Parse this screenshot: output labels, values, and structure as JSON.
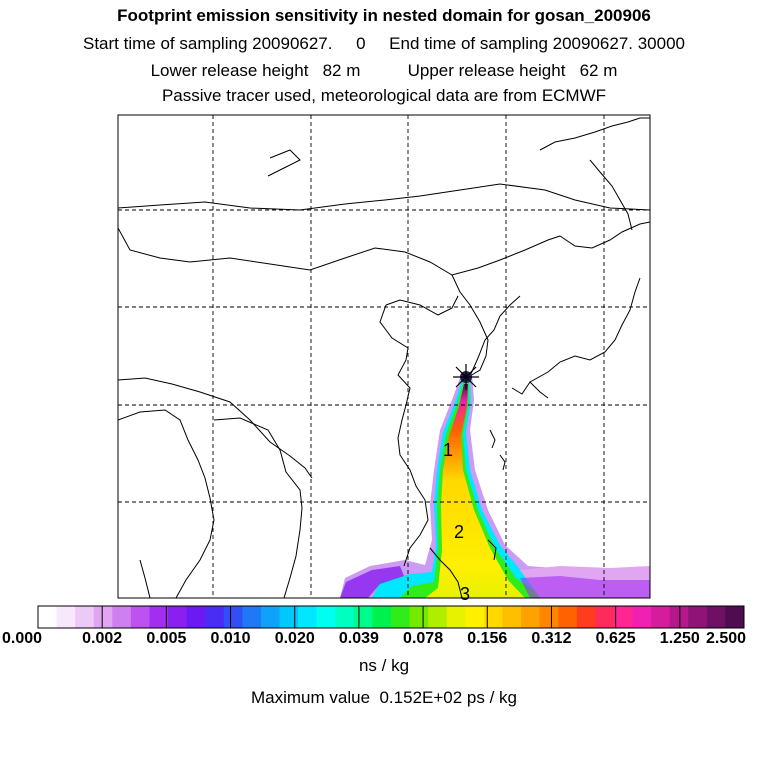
{
  "header": {
    "title": "Footprint emission sensitivity in nested domain for gosan_200906",
    "sampling_line": "Start time of sampling 20090627.     0     End time of sampling 20090627. 30000",
    "release_line": "Lower release height   82 m          Upper release height   62 m",
    "tracer_line": "Passive tracer used, meteorological data are from ECMWF"
  },
  "map": {
    "plume_labels": [
      "1",
      "2",
      "3"
    ],
    "release_marker": "gosan-release-site"
  },
  "colorbar": {
    "levels": [
      "0.000",
      "0.002",
      "0.005",
      "0.010",
      "0.020",
      "0.039",
      "0.078",
      "0.156",
      "0.312",
      "0.625",
      "1.250",
      "2.500"
    ],
    "colors": [
      "#ffffff",
      "#f7e8fb",
      "#ecc9f6",
      "#e0a6f2",
      "#cf7ff0",
      "#bd52f0",
      "#a42ef0",
      "#8a1ff0",
      "#6b1af2",
      "#4a2df4",
      "#3050f6",
      "#1e78f8",
      "#0fa2fa",
      "#00c8fc",
      "#00e8ff",
      "#00ffee",
      "#00ffc0",
      "#00fa8c",
      "#00f050",
      "#30ec18",
      "#74ea00",
      "#b0ee00",
      "#e6f200",
      "#fff000",
      "#ffd800",
      "#ffbe00",
      "#ffa200",
      "#ff8400",
      "#ff6200",
      "#ff3c1c",
      "#ff2a5c",
      "#ff2694",
      "#f020b0",
      "#d41c9c",
      "#b4188a",
      "#901478",
      "#6e1064",
      "#500c50"
    ],
    "units": "ns / kg",
    "max_value": "Maximum value  0.152E+02 ps / kg"
  }
}
